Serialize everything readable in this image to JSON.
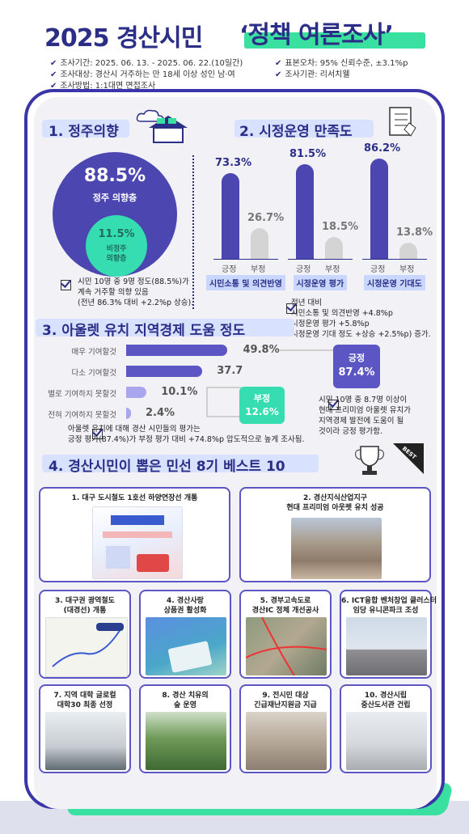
{
  "header": {
    "title_main": "2025 경산시민",
    "title_highlight": "‘정책 여론조사’",
    "info_left": [
      "조사기간: 2025. 06. 13. - 2025. 06. 22.(10일간)",
      "조사대상: 경산시 거주하는 만 18세 이상 성인 남·여",
      "조사방법: 1:1대면 면접조사"
    ],
    "info_right": [
      "표본오차: 95% 신뢰수준, ±3.1%p",
      "조사기관: 리서치웰"
    ]
  },
  "section1": {
    "title": "1. 정주의향",
    "main_pct": "88.5%",
    "main_label": "정주 의향층",
    "sub_pct": "11.5%",
    "sub_label_1": "비정주",
    "sub_label_2": "의향층",
    "note_1": "시민 10명 중 9명 정도(88.5%)가",
    "note_2": "계속 거주할 의향 있음",
    "note_3": "(전년 86.3% 대비 +2.2%p 상승)."
  },
  "section2": {
    "title": "2. 시정운영 만족도",
    "pos_label": "긍정",
    "neg_label": "부정",
    "groups": [
      {
        "name": "시민소통 및 의견반영",
        "pos": "73.3%",
        "neg": "26.7%",
        "pos_value": 73.3,
        "neg_value": 26.7
      },
      {
        "name": "시정운영 평가",
        "pos": "81.5%",
        "neg": "18.5%",
        "pos_value": 81.5,
        "neg_value": 18.5
      },
      {
        "name": "시정운영 기대도",
        "pos": "86.2%",
        "neg": "13.8%",
        "pos_value": 86.2,
        "neg_value": 13.8
      }
    ],
    "note_1": "전년 대비",
    "note_2": "시민소통 및 의견반영 +4.8%p",
    "note_3": "시정운영 평가 +5.8%p",
    "note_4": "시정운영 기대 정도 +상승 +2.5%p) 증가."
  },
  "section3": {
    "title": "3. 아울렛 유치 지역경제 도움 정도",
    "rows": [
      {
        "label": "매우 기여할것",
        "value": "49.8%",
        "num": 49.8
      },
      {
        "label": "다소 기여할것",
        "value": "37.7",
        "num": 37.7
      },
      {
        "label": "별로 기여하지 못할것",
        "value": "10.1%",
        "num": 10.1
      },
      {
        "label": "전혀 기여하지 못할것",
        "value": "2.4%",
        "num": 2.4
      }
    ],
    "pos_badge_label": "긍정",
    "pos_badge_value": "87.4%",
    "neg_badge_label": "부정",
    "neg_badge_value": "12.6%",
    "note_a1": "아울렛 유치에 대해 경산 시민들의 평가는",
    "note_a2": "긍정 평가(87.4%)가 부정 평가 대비 +74.8%p 압도적으로 높게 조사됨.",
    "note_b1": "시민 10명 중 8.7명 이상이",
    "note_b2": "현대 프리미엄 아울렛 유치가",
    "note_b3": "지역경제 발전에 도움이 될",
    "note_b4": "것이라 긍정 평가함."
  },
  "section4": {
    "title": "4. 경산시민이 뽑은 민선 8기 베스트 10",
    "best_tag": "BEST",
    "cards": [
      {
        "title": "1. 대구 도시철도 1호선 하양연장선 개통"
      },
      {
        "title": "2. 경산지식산업지구",
        "title2": "현대 프리미엄 아웃렛 유치 성공"
      },
      {
        "title": "3. 대구권 광역철도",
        "title2": "(대경선) 개통"
      },
      {
        "title": "4. 경산사랑",
        "title2": "상품권 활성화"
      },
      {
        "title": "5. 경부고속도로",
        "title2": "경산IC 정체 개선공사"
      },
      {
        "title": "6. ICT융합 벤처창업 클러스터",
        "title2": "임당 유니콘파크 조성"
      },
      {
        "title": "7. 지역 대학 글로컬",
        "title2": "대학30 최종 선정"
      },
      {
        "title": "8. 경산 치유의",
        "title2": "숲 운영"
      },
      {
        "title": "9. 전시민 대상",
        "title2": "긴급재난지원금 지급"
      },
      {
        "title": "10. 경산시립",
        "title2": "중산도서관 건립"
      }
    ]
  },
  "colors": {
    "accent_navy": "#2b2e86",
    "accent_purple": "#4b46b0",
    "accent_green": "#39e0a0",
    "neg_grey": "#d4d4d4"
  }
}
